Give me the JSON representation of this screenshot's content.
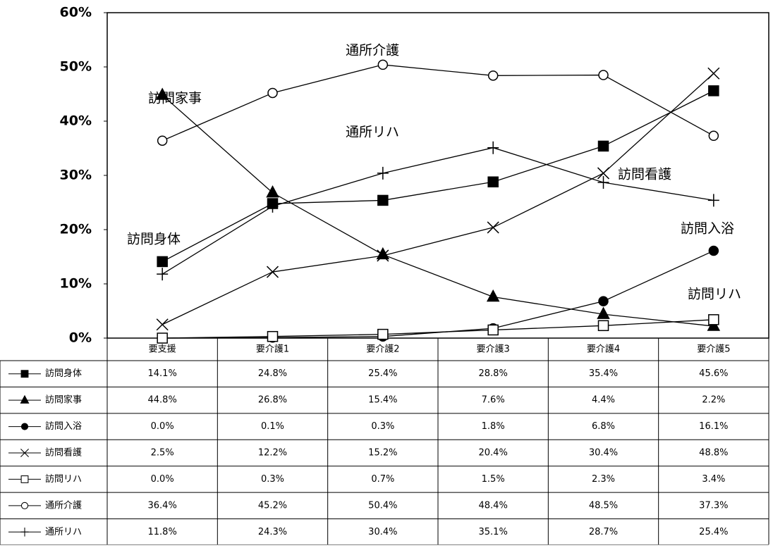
{
  "chart_data": {
    "type": "line",
    "categories": [
      "要支援",
      "要介護1",
      "要介護2",
      "要介護3",
      "要介護4",
      "要介護5"
    ],
    "ylim": [
      0,
      60
    ],
    "yticks": [
      {
        "value": 0,
        "label": "0%"
      },
      {
        "value": 10,
        "label": "10%"
      },
      {
        "value": 20,
        "label": "20%"
      },
      {
        "value": 30,
        "label": "30%"
      },
      {
        "value": 40,
        "label": "40%"
      },
      {
        "value": 50,
        "label": "50%"
      },
      {
        "value": 60,
        "label": "60%"
      }
    ],
    "series": [
      {
        "name": "訪問身体",
        "color": "#000000",
        "marker": "square",
        "values": [
          14.1,
          24.8,
          25.4,
          28.8,
          35.4,
          45.6
        ],
        "value_labels": [
          "14.1%",
          "24.8%",
          "25.4%",
          "28.8%",
          "35.4%",
          "45.6%"
        ]
      },
      {
        "name": "訪問家事",
        "color": "#000000",
        "marker": "triangle",
        "values": [
          44.8,
          26.8,
          15.4,
          7.6,
          4.4,
          2.2
        ],
        "value_labels": [
          "44.8%",
          "26.8%",
          "15.4%",
          "7.6%",
          "4.4%",
          "2.2%"
        ]
      },
      {
        "name": "訪問入浴",
        "color": "#000000",
        "marker": "circle",
        "values": [
          0.0,
          0.1,
          0.3,
          1.8,
          6.8,
          16.1
        ],
        "value_labels": [
          "0.0%",
          "0.1%",
          "0.3%",
          "1.8%",
          "6.8%",
          "16.1%"
        ]
      },
      {
        "name": "訪問看護",
        "color": "#000000",
        "marker": "x",
        "values": [
          2.5,
          12.2,
          15.2,
          20.4,
          30.4,
          48.8
        ],
        "value_labels": [
          "2.5%",
          "12.2%",
          "15.2%",
          "20.4%",
          "30.4%",
          "48.8%"
        ]
      },
      {
        "name": "訪問リハ",
        "color": "#000000",
        "marker": "open-square",
        "values": [
          0.0,
          0.3,
          0.7,
          1.5,
          2.3,
          3.4
        ],
        "value_labels": [
          "0.0%",
          "0.3%",
          "0.7%",
          "1.5%",
          "2.3%",
          "3.4%"
        ]
      },
      {
        "name": "通所介護",
        "color": "#000000",
        "marker": "open-circle",
        "values": [
          36.4,
          45.2,
          50.4,
          48.4,
          48.5,
          37.3
        ],
        "value_labels": [
          "36.4%",
          "45.2%",
          "50.4%",
          "48.4%",
          "48.5%",
          "37.3%"
        ]
      },
      {
        "name": "通所リハ",
        "color": "#000000",
        "marker": "plus",
        "values": [
          11.8,
          24.3,
          30.4,
          35.1,
          28.7,
          25.4
        ],
        "value_labels": [
          "11.8%",
          "24.3%",
          "30.4%",
          "35.1%",
          "28.7%",
          "25.4%"
        ]
      }
    ]
  }
}
